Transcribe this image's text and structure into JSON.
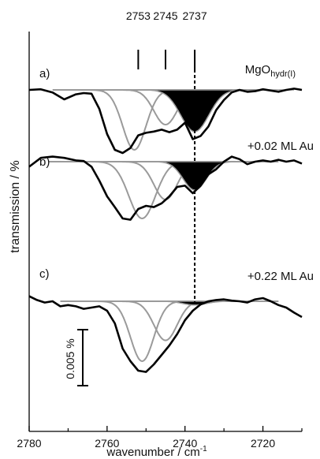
{
  "chart_data": {
    "type": "line",
    "title": "",
    "xlabel": "wavenumber / cm",
    "xlabel_superscript": "-1",
    "ylabel": "transmission / %",
    "xlim": [
      2780,
      2710
    ],
    "x_ticks": [
      2780,
      2760,
      2740,
      2720
    ],
    "x_tick_labels": [
      "2780",
      "2760",
      "2740",
      "2720"
    ],
    "grid": false,
    "peak_markers": [
      {
        "label": "2753",
        "x": 2752
      },
      {
        "label": "2745",
        "x": 2745
      },
      {
        "label": "2737",
        "x": 2737.5
      }
    ],
    "dashed_line_x": 2737.5,
    "scale_bar": {
      "label": "0.005 %",
      "value": 0.005
    },
    "panels": [
      {
        "id": "a",
        "label": "a)",
        "annotation": "MgO",
        "annotation_subscript": "hydr(I)",
        "spectrum": {
          "x": [
            2780,
            2777,
            2774,
            2771,
            2768,
            2766,
            2764,
            2762,
            2760,
            2758,
            2756,
            2754,
            2752,
            2750,
            2748,
            2746,
            2744,
            2742,
            2740,
            2738,
            2736,
            2734,
            2732,
            2730,
            2728,
            2726,
            2724,
            2722,
            2720,
            2718,
            2716,
            2714,
            2712,
            2710
          ],
          "y": [
            0,
            1,
            -4,
            -15,
            -7,
            -5,
            -6,
            -30,
            -70,
            -95,
            -100,
            -92,
            -72,
            -68,
            -66,
            -63,
            -67,
            -63,
            -52,
            -78,
            -73,
            -58,
            -32,
            -16,
            -4,
            0,
            -3,
            -2,
            1,
            -1,
            -3,
            0,
            2,
            0
          ]
        },
        "baseline": {
          "x_start": 2772,
          "x_end": 2719
        },
        "components": [
          {
            "center": 2753,
            "amplitude": -95,
            "fwhm": 7,
            "filled": false
          },
          {
            "center": 2745,
            "amplitude": -55,
            "fwhm": 7,
            "filled": false
          },
          {
            "center": 2737.5,
            "amplitude": -66,
            "fwhm": 8.5,
            "filled": true
          }
        ]
      },
      {
        "id": "b",
        "label": "b)",
        "annotation": "+0.02 ML Au",
        "annotation_subscript": "",
        "spectrum": {
          "x": [
            2780,
            2777,
            2774,
            2771,
            2768,
            2766,
            2764,
            2762,
            2760,
            2758,
            2756,
            2754,
            2752,
            2750,
            2748,
            2746,
            2744,
            2742,
            2740,
            2738,
            2736,
            2734,
            2732,
            2730,
            2728,
            2726,
            2724,
            2722,
            2720,
            2718,
            2716,
            2714,
            2712,
            2710
          ],
          "y": [
            -8,
            6,
            8,
            6,
            2,
            1,
            -8,
            -30,
            -55,
            -72,
            -90,
            -92,
            -75,
            -70,
            -72,
            -66,
            -55,
            -40,
            -38,
            -50,
            -38,
            -20,
            -12,
            0,
            8,
            4,
            -4,
            0,
            2,
            0,
            3,
            0,
            2,
            -3
          ]
        },
        "baseline": {
          "x_start": 2772,
          "x_end": 2716
        },
        "components": [
          {
            "center": 2751,
            "amplitude": -90,
            "fwhm": 8,
            "filled": false
          },
          {
            "center": 2745,
            "amplitude": -60,
            "fwhm": 7,
            "filled": false
          },
          {
            "center": 2737.5,
            "amplitude": -45,
            "fwhm": 7,
            "filled": true
          }
        ]
      },
      {
        "id": "c",
        "label": "c)",
        "annotation": "+0.22 ML Au",
        "annotation_subscript": "",
        "spectrum": {
          "x": [
            2780,
            2778,
            2776,
            2774,
            2772,
            2770,
            2768,
            2766,
            2764,
            2762,
            2760,
            2758,
            2756,
            2754,
            2752,
            2750,
            2748,
            2746,
            2744,
            2742,
            2740,
            2738,
            2736,
            2734,
            2732,
            2730,
            2728,
            2726,
            2724,
            2722,
            2720,
            2718,
            2716,
            2714,
            2712,
            2710
          ],
          "y": [
            8,
            2,
            -2,
            0,
            -8,
            -6,
            -8,
            -12,
            -10,
            -8,
            -15,
            -35,
            -75,
            -95,
            -110,
            -112,
            -100,
            -85,
            -70,
            -52,
            -30,
            -15,
            -5,
            0,
            2,
            3,
            1,
            0,
            -2,
            3,
            5,
            0,
            -6,
            -10,
            -18,
            -25
          ]
        },
        "baseline": {
          "x_start": 2772,
          "x_end": 2716
        },
        "components": [
          {
            "center": 2751,
            "amplitude": -95,
            "fwhm": 7,
            "filled": false
          },
          {
            "center": 2745,
            "amplitude": -62,
            "fwhm": 7,
            "filled": false
          },
          {
            "center": 2737.5,
            "amplitude": -6,
            "fwhm": 7,
            "filled": true
          }
        ]
      }
    ],
    "colors": {
      "spectrum": "#000000",
      "component": "#9a9a9a",
      "filled_component": "#000000",
      "axis": "#000000"
    }
  }
}
